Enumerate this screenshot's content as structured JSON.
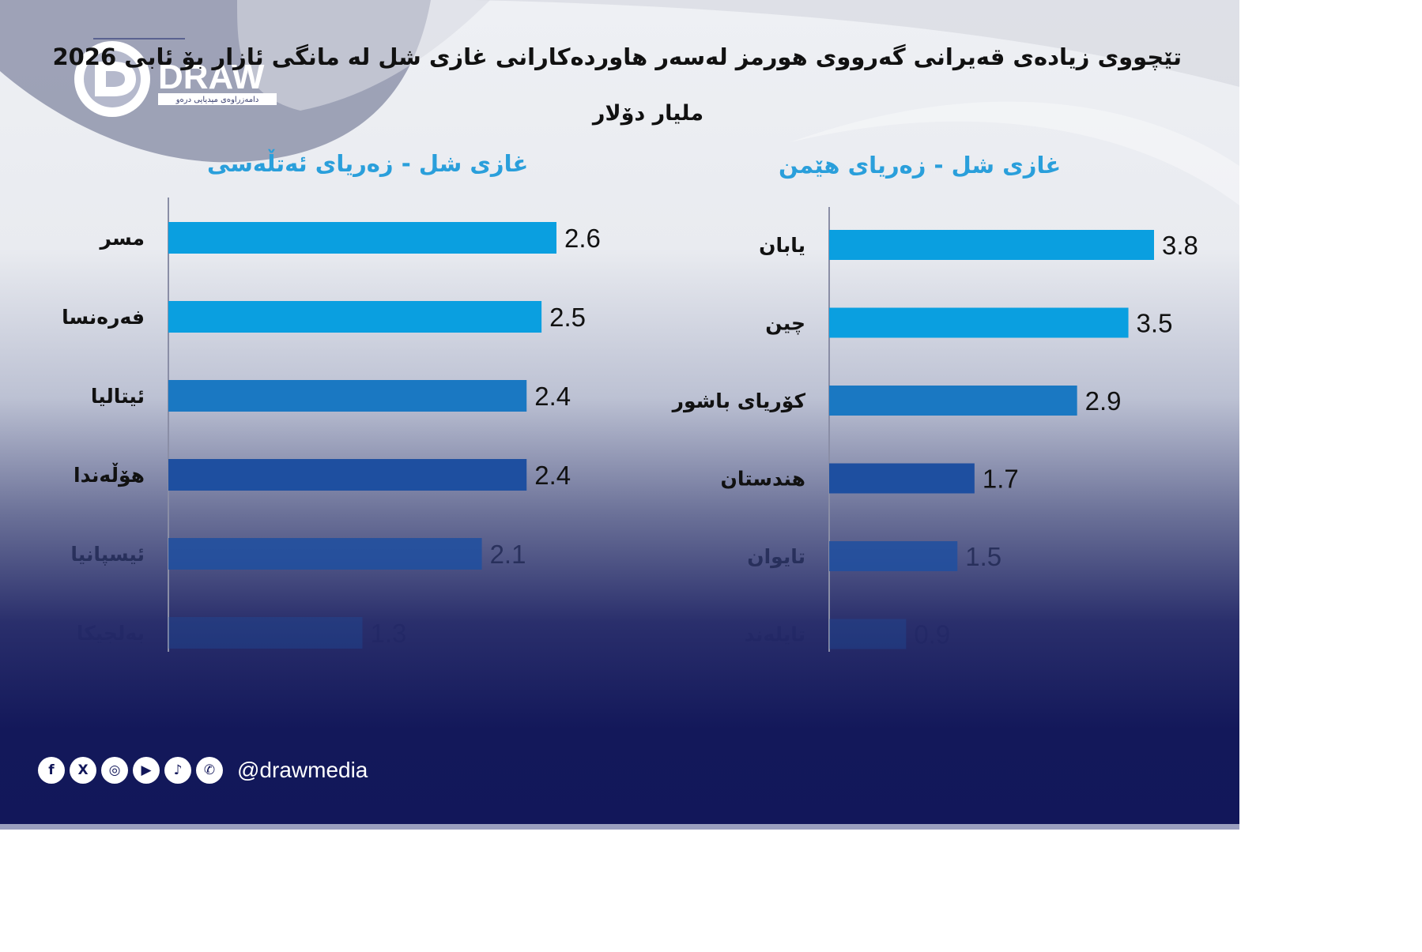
{
  "title": "تێچووی زیادەی قەیرانی گەرووی هورمز لەسەر هاوردەکارانی غازی شل لە مانگی ئازار بۆ ئابی 2026",
  "subtitle": "ملیار دۆلار",
  "logo": {
    "brand": "DRAW",
    "tagline": "دامەزراوەی میدیایی درەو"
  },
  "colors": {
    "bar_light": "#0a9fe0",
    "bar_mid": "#1a78c2",
    "bar_dark": "#1e4fa0",
    "title_blue": "#2a9fdb"
  },
  "social": {
    "icons": [
      "facebook-icon",
      "x-icon",
      "instagram-icon",
      "youtube-icon",
      "tiktok-icon",
      "whatsapp-icon"
    ],
    "handle": "@drawmedia"
  },
  "chart_data": [
    {
      "type": "bar",
      "orientation": "horizontal",
      "title": "غازی شل - زەریای ئەتڵەسی",
      "categories": [
        "مسر",
        "فەرەنسا",
        "ئیتالیا",
        "هۆڵەندا",
        "ئیسپانیا",
        "بەلجیکا"
      ],
      "values": [
        2.6,
        2.5,
        2.4,
        2.4,
        2.1,
        1.3
      ],
      "value_labels": [
        "2.6",
        "2.5",
        "2.4",
        "2.4",
        "2.1",
        "1.3"
      ],
      "xlim": [
        0,
        2.6
      ],
      "grid": false,
      "legend": "none"
    },
    {
      "type": "bar",
      "orientation": "horizontal",
      "title": "غازی شل - زەریای هێمن",
      "categories": [
        "یابان",
        "چین",
        "کۆریای باشور",
        "هندستان",
        "تایوان",
        "تایلەند"
      ],
      "values": [
        3.8,
        3.5,
        2.9,
        1.7,
        1.5,
        0.9
      ],
      "value_labels": [
        "3.8",
        "3.5",
        "2.9",
        "1.7",
        "1.5",
        "0.9"
      ],
      "xlim": [
        0,
        3.8
      ],
      "grid": false,
      "legend": "none"
    }
  ]
}
